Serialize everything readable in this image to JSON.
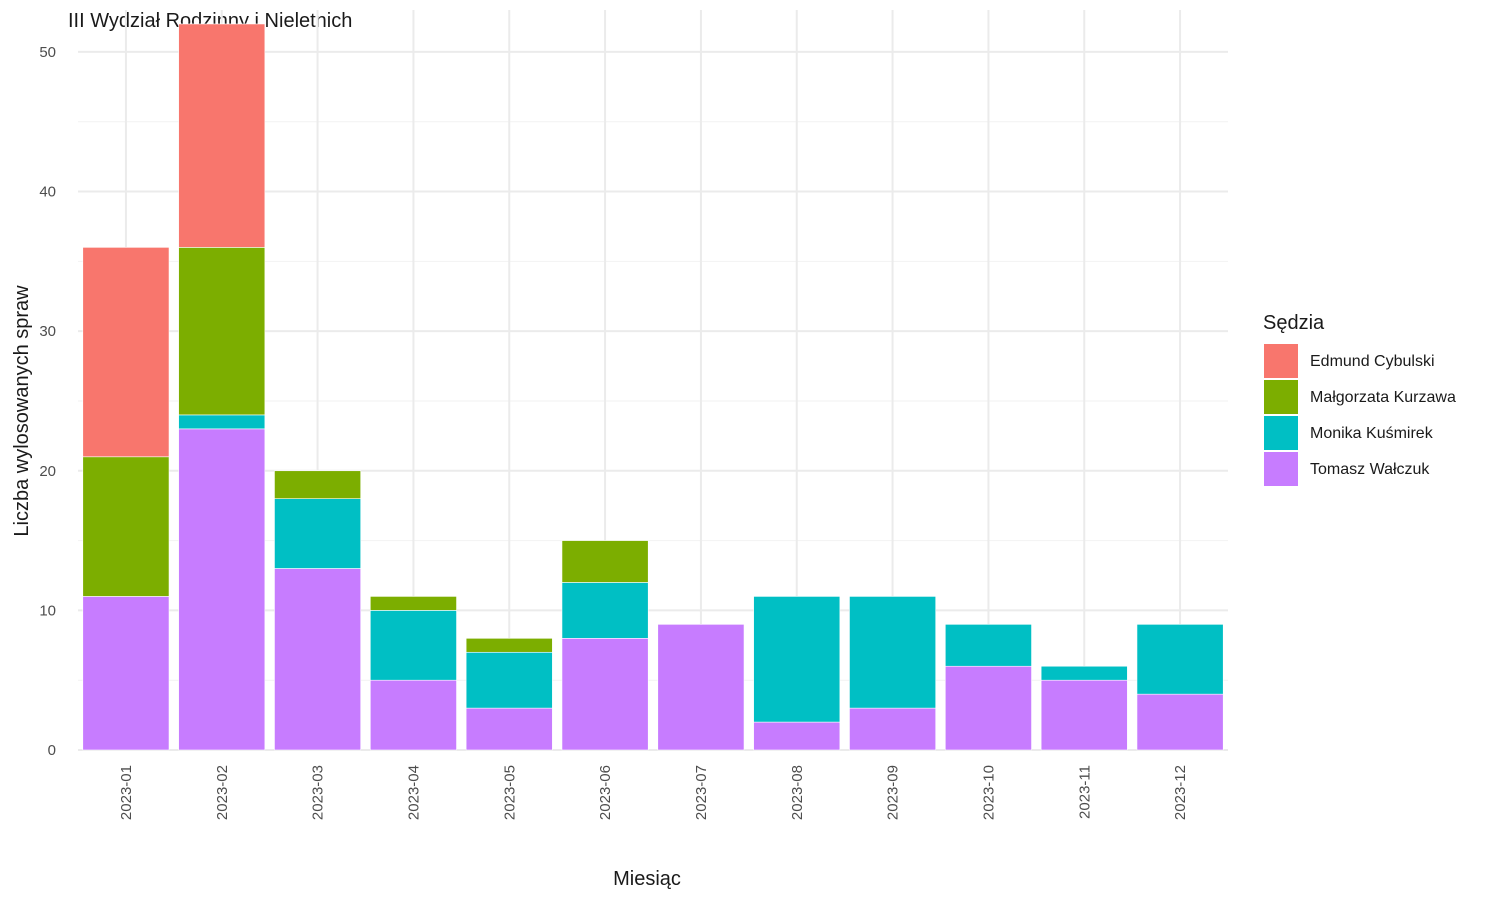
{
  "chart_data": {
    "type": "bar",
    "stacked": true,
    "title": "III Wydział Rodzinny i Nieletnich",
    "xlabel": "Miesiąc",
    "ylabel": "Liczba wylosowanych spraw",
    "ylim": [
      0,
      53
    ],
    "yticks": [
      0,
      10,
      20,
      30,
      40,
      50
    ],
    "grid": true,
    "legend_title": "Sędzia",
    "legend_position": "right",
    "categories": [
      "2023-01",
      "2023-02",
      "2023-03",
      "2023-04",
      "2023-05",
      "2023-06",
      "2023-07",
      "2023-08",
      "2023-09",
      "2023-10",
      "2023-11",
      "2023-12"
    ],
    "series": [
      {
        "name": "Edmund Cybulski",
        "color": "#F8766D",
        "values": [
          15,
          16,
          0,
          0,
          0,
          0,
          0,
          0,
          0,
          0,
          0,
          0
        ]
      },
      {
        "name": "Małgorzata Kurzawa",
        "color": "#7CAE00",
        "values": [
          10,
          12,
          2,
          1,
          1,
          3,
          0,
          0,
          0,
          0,
          0,
          0
        ]
      },
      {
        "name": "Monika Kuśmirek",
        "color": "#00BFC4",
        "values": [
          0,
          1,
          5,
          5,
          4,
          4,
          0,
          9,
          8,
          3,
          1,
          5
        ]
      },
      {
        "name": "Tomasz Wałczuk",
        "color": "#C77CFF",
        "values": [
          11,
          23,
          13,
          5,
          3,
          8,
          9,
          2,
          3,
          6,
          5,
          4
        ]
      }
    ]
  }
}
